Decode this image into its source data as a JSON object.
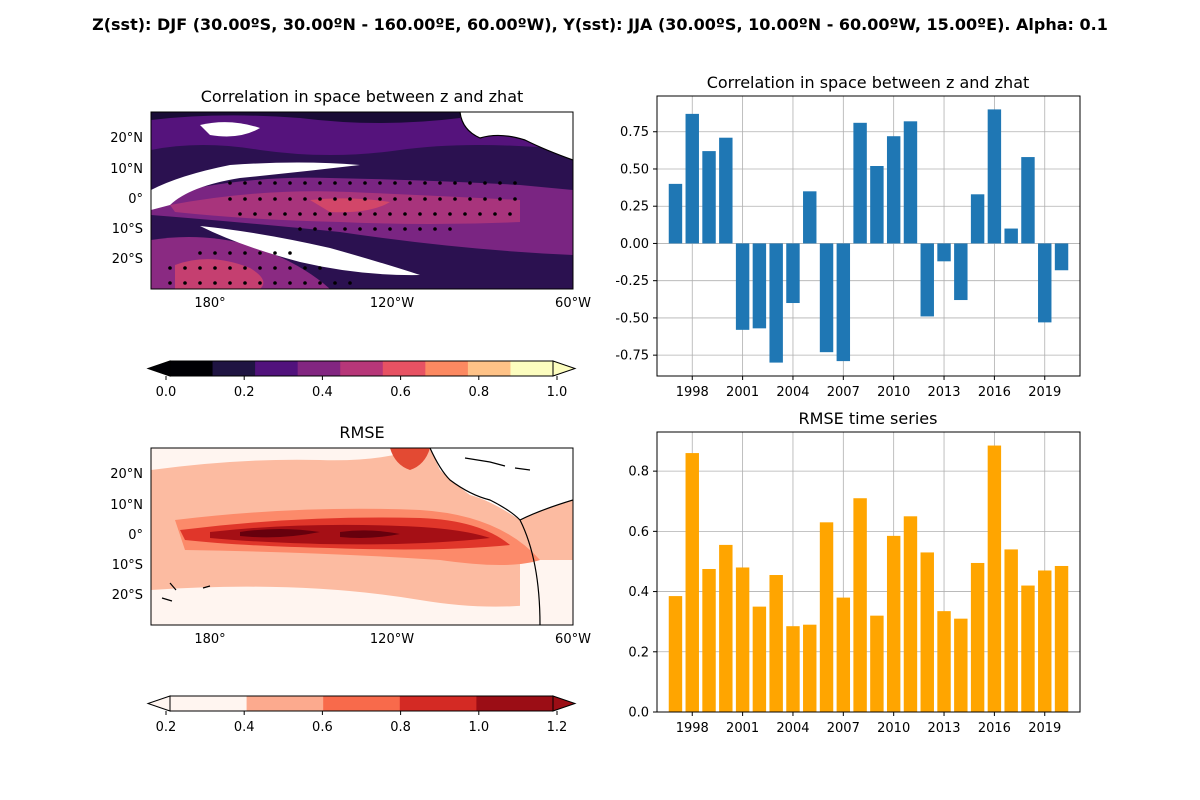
{
  "suptitle": "Z(sst): DJF (30.00ºS, 30.00ºN - 160.00ºE, 60.00ºW), Y(sst): JJA (30.00ºS, 10.00ºN - 60.00ºW, 15.00ºE). Alpha: 0.1",
  "maps": [
    {
      "title": "Correlation in space between z and zhat",
      "lat_ticks": [
        "20°N",
        "10°N",
        "0°",
        "10°S",
        "20°S"
      ],
      "lon_ticks": [
        "180°",
        "120°W",
        "60°W"
      ],
      "colorbar": {
        "colors": [
          "#000004",
          "#1f1442",
          "#51127c",
          "#822681",
          "#b73779",
          "#e75263",
          "#fc8961",
          "#fec287",
          "#fcfdbf"
        ],
        "ticks": [
          "0.0",
          "0.2",
          "0.4",
          "0.6",
          "0.8",
          "1.0"
        ]
      }
    },
    {
      "title": "RMSE",
      "lat_ticks": [
        "20°N",
        "10°N",
        "0°",
        "10°S",
        "20°S"
      ],
      "lon_ticks": [
        "180°",
        "120°W",
        "60°W"
      ],
      "colorbar": {
        "colors": [
          "#fff5f0",
          "#fcaa8e",
          "#f86a4b",
          "#d42a24",
          "#9b0d15"
        ],
        "ticks": [
          "0.2",
          "0.4",
          "0.6",
          "0.8",
          "1.0",
          "1.2"
        ]
      }
    }
  ],
  "chart_data": [
    {
      "type": "bar",
      "title": "Correlation in space between z and zhat",
      "color": "#1f77b4",
      "grid": true,
      "x": [
        1997,
        1998,
        1999,
        2000,
        2001,
        2002,
        2003,
        2004,
        2005,
        2006,
        2007,
        2008,
        2009,
        2010,
        2011,
        2012,
        2013,
        2014,
        2015,
        2016,
        2017,
        2018,
        2019,
        2020
      ],
      "values": [
        0.4,
        0.87,
        0.62,
        0.71,
        -0.58,
        -0.57,
        -0.8,
        -0.4,
        0.35,
        -0.73,
        -0.79,
        0.81,
        0.52,
        0.72,
        0.82,
        -0.49,
        -0.12,
        -0.38,
        0.33,
        0.9,
        0.1,
        0.58,
        -0.53,
        -0.18
      ],
      "xticks": [
        1998,
        2001,
        2004,
        2007,
        2010,
        2013,
        2016,
        2019
      ],
      "yticks": [
        "-0.75",
        "-0.50",
        "-0.25",
        "0.00",
        "0.25",
        "0.50",
        "0.75"
      ],
      "ylim": [
        -0.89,
        0.99
      ],
      "xlim": [
        1995.9,
        2021.1
      ]
    },
    {
      "type": "bar",
      "title": "RMSE time series",
      "color": "#ffa500",
      "grid": true,
      "x": [
        1997,
        1998,
        1999,
        2000,
        2001,
        2002,
        2003,
        2004,
        2005,
        2006,
        2007,
        2008,
        2009,
        2010,
        2011,
        2012,
        2013,
        2014,
        2015,
        2016,
        2017,
        2018,
        2019,
        2020
      ],
      "values": [
        0.385,
        0.86,
        0.475,
        0.555,
        0.48,
        0.35,
        0.455,
        0.285,
        0.29,
        0.63,
        0.38,
        0.71,
        0.32,
        0.585,
        0.65,
        0.53,
        0.335,
        0.31,
        0.495,
        0.885,
        0.54,
        0.42,
        0.47,
        0.485
      ],
      "xticks": [
        1998,
        2001,
        2004,
        2007,
        2010,
        2013,
        2016,
        2019
      ],
      "yticks": [
        "0.0",
        "0.2",
        "0.4",
        "0.6",
        "0.8"
      ],
      "ylim": [
        0,
        0.93
      ],
      "xlim": [
        1995.9,
        2021.1
      ]
    }
  ]
}
